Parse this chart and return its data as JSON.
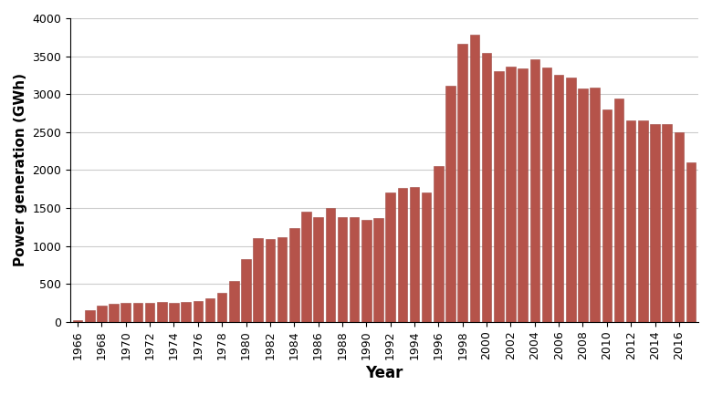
{
  "years": [
    1966,
    1967,
    1968,
    1969,
    1970,
    1971,
    1972,
    1973,
    1974,
    1975,
    1976,
    1977,
    1978,
    1979,
    1980,
    1981,
    1982,
    1983,
    1984,
    1985,
    1986,
    1987,
    1988,
    1989,
    1990,
    1991,
    1992,
    1993,
    1994,
    1995,
    1996,
    1997,
    1998,
    1999,
    2000,
    2001,
    2002,
    2003,
    2004,
    2005,
    2006,
    2007,
    2008,
    2009,
    2010,
    2011,
    2012,
    2013,
    2014,
    2015,
    2016,
    2017
  ],
  "values": [
    26,
    150,
    215,
    240,
    255,
    250,
    255,
    265,
    255,
    265,
    270,
    310,
    380,
    535,
    830,
    1100,
    1095,
    1115,
    1240,
    1455,
    1380,
    1500,
    1385,
    1385,
    1340,
    1370,
    1710,
    1770,
    1775,
    1705,
    2050,
    3110,
    3660,
    3780,
    3540,
    3300,
    3360,
    3340,
    3460,
    3350,
    3250,
    3220,
    3070,
    3090,
    2800,
    2940,
    2660,
    2660,
    2600,
    2600,
    2500,
    2100
  ],
  "bar_color": "#b5534a",
  "bar_edgecolor": "#9e4a43",
  "xlabel": "Year",
  "ylabel": "Power generation (GWh)",
  "ylim": [
    0,
    4000
  ],
  "yticks": [
    0,
    500,
    1000,
    1500,
    2000,
    2500,
    3000,
    3500,
    4000
  ],
  "grid_color": "#cccccc",
  "figsize": [
    7.8,
    4.33
  ],
  "dpi": 100
}
